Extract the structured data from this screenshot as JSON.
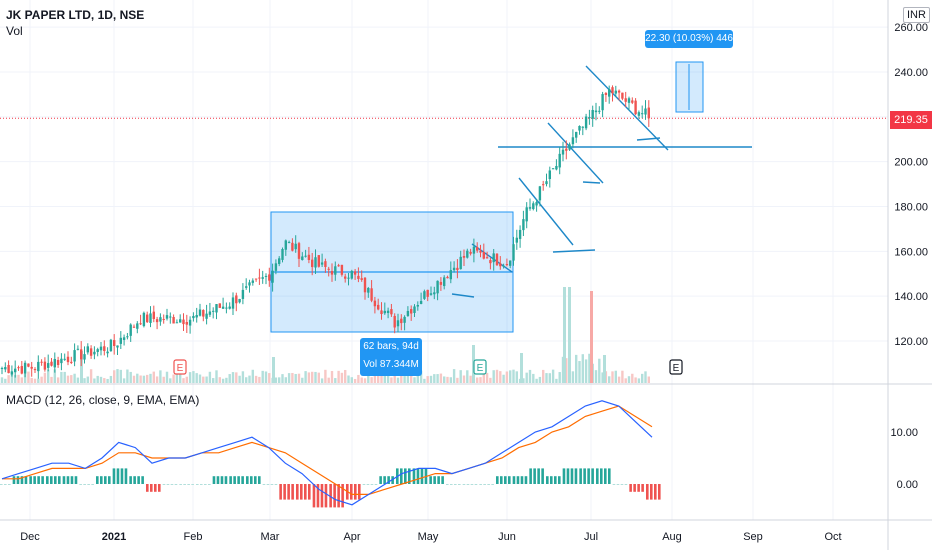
{
  "header": {
    "symbol_title": "JK PAPER LTD, 1D, NSE",
    "volume_label": "Vol",
    "currency": "INR",
    "macd_label": "MACD (12, 26, close, 9, EMA, EMA)"
  },
  "price_tag": "219.35",
  "measure_box": "22.30 (10.03%) 446",
  "range_box": {
    "line1": "62 bars, 94d",
    "line2": "Vol 87.344M"
  },
  "earnings_marker": "E",
  "colors": {
    "up": "#26a69a",
    "down": "#ef5350",
    "macd": "#2962ff",
    "signal": "#ff6d00",
    "drawing": "#2196f3",
    "last_price": "#f23645"
  },
  "chart_data": {
    "type": "candlestick",
    "price_axis": {
      "ticks": [
        120,
        140,
        160,
        180,
        200,
        220,
        240,
        260
      ],
      "tick_labels": [
        "120.00",
        "140.00",
        "160.00",
        "180.00",
        "200.00",
        "220.00",
        "240.00",
        "260.00"
      ]
    },
    "macd_axis": {
      "ticks": [
        0,
        10
      ],
      "tick_labels": [
        "0.00",
        "10.00"
      ]
    },
    "time_axis": [
      "Dec",
      "2021",
      "Feb",
      "Mar",
      "Apr",
      "May",
      "Jun",
      "Jul",
      "Aug",
      "Sep",
      "Oct"
    ],
    "last_price": 219.35,
    "approx_close_path": [
      {
        "date": "Dec",
        "close": 108
      },
      {
        "date": "2021",
        "close": 118
      },
      {
        "date": "2021-01-05",
        "close": 130
      },
      {
        "date": "Feb",
        "close": 130
      },
      {
        "date": "2021-02-15",
        "close": 137
      },
      {
        "date": "Mar",
        "close": 150
      },
      {
        "date": "2021-03-05",
        "close": 164
      },
      {
        "date": "2021-03-20",
        "close": 153
      },
      {
        "date": "Apr",
        "close": 150
      },
      {
        "date": "2021-04-15",
        "close": 128
      },
      {
        "date": "May",
        "close": 142
      },
      {
        "date": "2021-05-20",
        "close": 160
      },
      {
        "date": "Jun",
        "close": 155
      },
      {
        "date": "2021-06-10",
        "close": 176
      },
      {
        "date": "2021-06-25",
        "close": 208
      },
      {
        "date": "Jul",
        "close": 220
      },
      {
        "date": "2021-07-08",
        "close": 232
      },
      {
        "date": "2021-07-20",
        "close": 219.35
      }
    ],
    "macd_series": [
      {
        "name": "MACD",
        "values": [
          1,
          2,
          3,
          4,
          4,
          3,
          5,
          8,
          7,
          4,
          5,
          5,
          6,
          7,
          8,
          9,
          7,
          4,
          2,
          -1,
          -3,
          -4,
          -2,
          0,
          2,
          3,
          3,
          2,
          3,
          4,
          6,
          8,
          10,
          11,
          13,
          15,
          16,
          15,
          12,
          9
        ]
      },
      {
        "name": "Signal",
        "values": [
          1,
          1,
          2,
          3,
          3,
          3,
          4,
          6,
          6,
          5,
          5,
          5,
          6,
          6,
          7,
          8,
          7,
          6,
          4,
          2,
          0,
          -2,
          -2,
          -1,
          0,
          1,
          2,
          2,
          3,
          4,
          5,
          7,
          8,
          10,
          11,
          13,
          14,
          15,
          13,
          11
        ]
      }
    ],
    "range_annotation": {
      "bars": 62,
      "days": 94,
      "volume": "87.344M"
    },
    "measure_annotation": {
      "change": 22.3,
      "percent": 10.03,
      "bars": 446
    }
  }
}
